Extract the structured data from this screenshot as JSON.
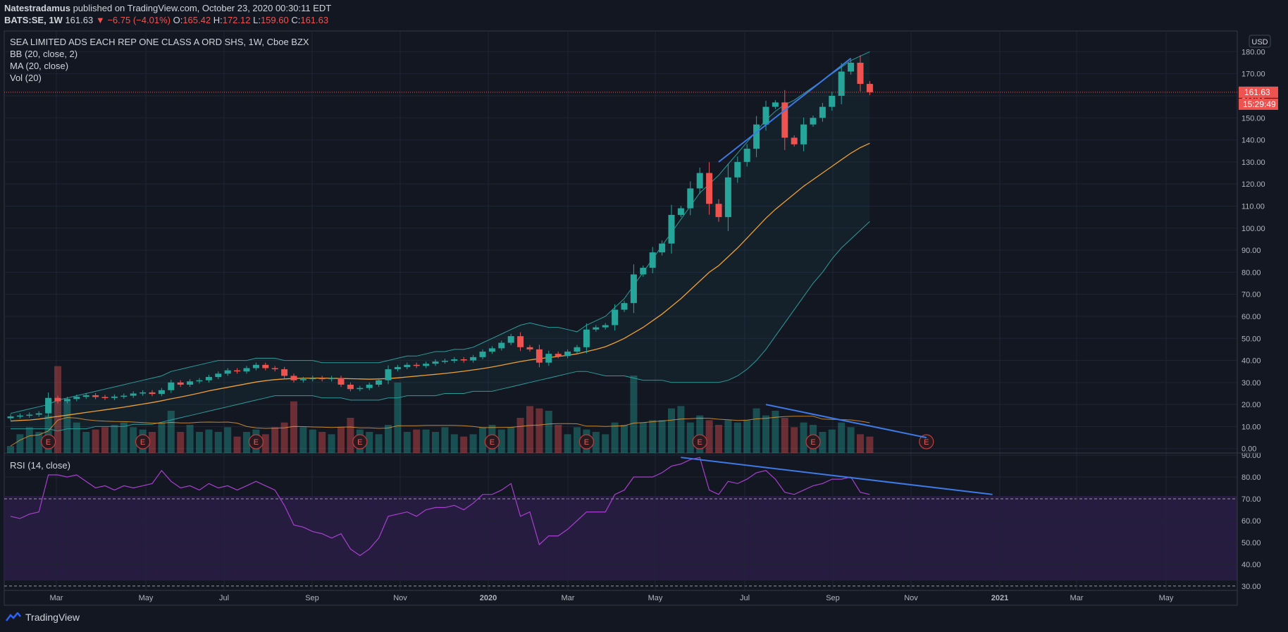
{
  "header": {
    "author": "Natestradamus",
    "published_text": "published on TradingView.com, October 23, 2020 00:30:11 EDT",
    "symbol_interval": "BATS:SE, 1W",
    "price": "161.63",
    "change": "−6.75 (−4.01%)",
    "o_label": "O:",
    "o_value": "165.42",
    "h_label": "H:",
    "h_value": "172.12",
    "l_label": "L:",
    "l_value": "159.60",
    "c_label": "C:",
    "c_value": "161.63"
  },
  "legend": {
    "title": "SEA LIMITED ADS EACH REP ONE CLASS A ORD SHS, 1W, Cboe BZX",
    "bb": "BB (20, close, 2)",
    "ma": "MA (20, close)",
    "vol": "Vol (20)",
    "rsi": "RSI (14, close)"
  },
  "currency": "USD",
  "last_price_label": "161.63",
  "countdown_label": "15:29:49",
  "footer": {
    "brand": "TradingView"
  },
  "colors": {
    "up": "#26a69a",
    "down": "#ef5350",
    "ma": "#f0a030",
    "bb": "#2a9d9a",
    "rsi": "#a93fd0",
    "trend": "#3d7ae6",
    "bg": "#131722"
  },
  "chart_data": {
    "type": "candlestick",
    "title": "SEA LIMITED ADS EACH REP ONE CLASS A ORD SHS, 1W, Cboe BZX",
    "x_ticks": [
      "Mar",
      "May",
      "Jul",
      "Sep",
      "Nov",
      "2020",
      "Mar",
      "May",
      "Jul",
      "Sep",
      "Nov",
      "2021",
      "Mar",
      "May"
    ],
    "y_ticks": [
      "180.00",
      "170.00",
      "160.00",
      "150.00",
      "140.00",
      "130.00",
      "120.00",
      "110.00",
      "100.00",
      "90.00",
      "80.00",
      "70.00",
      "60.00",
      "50.00",
      "40.00",
      "30.00",
      "20.00",
      "10.00",
      "0.00"
    ],
    "ylim": [
      -2,
      183
    ],
    "rsi_ticks": [
      "90.00",
      "80.00",
      "70.00",
      "60.00",
      "50.00",
      "40.00",
      "30.00"
    ],
    "rsi_lim": [
      28,
      91
    ],
    "close": [
      14.6,
      15.0,
      15.4,
      16.0,
      23.0,
      21.5,
      22.5,
      23.5,
      24.2,
      23.4,
      23.0,
      23.6,
      24.0,
      25.0,
      25.5,
      24.8,
      26.5,
      30.0,
      29.0,
      30.5,
      31.0,
      32.5,
      34.0,
      35.5,
      35.0,
      36.5,
      38.0,
      36.5,
      36.0,
      33.0,
      31.0,
      31.5,
      32.0,
      31.5,
      32.0,
      29.0,
      27.0,
      27.5,
      29.0,
      31.0,
      36.0,
      37.0,
      38.0,
      37.5,
      38.5,
      39.5,
      39.8,
      40.5,
      40.0,
      41.5,
      44.0,
      45.5,
      48.0,
      51.0,
      46.0,
      45.0,
      39.0,
      43.0,
      42.0,
      44.0,
      46.0,
      54.0,
      55.0,
      56.0,
      63.0,
      66.0,
      79.0,
      82.0,
      89.0,
      93.0,
      106.0,
      109.0,
      118.0,
      125.0,
      111.0,
      105.0,
      123.0,
      130.0,
      136.0,
      147.0,
      155.0,
      157.0,
      141.0,
      138.0,
      147.0,
      150.0,
      155.0,
      160.0,
      171.0,
      175.0,
      165.4,
      161.63
    ],
    "volume": [
      3,
      8,
      11,
      9,
      16,
      37,
      22,
      13,
      9,
      10,
      11,
      12,
      13,
      11,
      10,
      9,
      13,
      18,
      9,
      12,
      9,
      10,
      9,
      11,
      7,
      9,
      10,
      8,
      11,
      13,
      22,
      11,
      10,
      9,
      8,
      11,
      15,
      10,
      9,
      8,
      12,
      30,
      9,
      10,
      10,
      9,
      11,
      8,
      7,
      8,
      11,
      12,
      10,
      11,
      15,
      20,
      19,
      18,
      12,
      8,
      11,
      10,
      9,
      8,
      13,
      12,
      33,
      13,
      14,
      14,
      19,
      20,
      13,
      16,
      14,
      12,
      14,
      13,
      14,
      19,
      16,
      18,
      15,
      11,
      13,
      12,
      9,
      10,
      13,
      11,
      8,
      7
    ],
    "ma": [
      12.5,
      12.8,
      13.0,
      13.4,
      14.0,
      14.6,
      15.2,
      15.8,
      16.4,
      17.0,
      17.6,
      18.2,
      18.8,
      19.5,
      20.2,
      20.9,
      21.7,
      22.6,
      23.4,
      24.3,
      25.2,
      26.2,
      27.0,
      27.8,
      28.6,
      29.4,
      30.2,
      30.8,
      31.3,
      31.6,
      31.8,
      31.9,
      32.0,
      32.0,
      31.9,
      31.8,
      31.7,
      31.6,
      31.5,
      31.6,
      31.8,
      32.1,
      32.5,
      32.9,
      33.3,
      33.7,
      34.1,
      34.6,
      35.1,
      35.7,
      36.3,
      37.0,
      37.8,
      38.7,
      39.5,
      40.2,
      40.8,
      41.3,
      41.8,
      42.3,
      43.0,
      44.0,
      45.0,
      46.2,
      48.0,
      50.0,
      52.5,
      55.0,
      58.0,
      61.0,
      64.5,
      68.0,
      72.0,
      76.0,
      80.0,
      83.0,
      87.0,
      91.0,
      95.5,
      100.0,
      104.5,
      108.5,
      112.0,
      115.5,
      119.0,
      122.0,
      125.0,
      128.0,
      131.0,
      134.0,
      136.5,
      138.5
    ],
    "bb_upper": [
      16,
      17,
      18,
      19,
      20,
      22,
      23,
      24,
      25,
      26,
      27,
      28,
      29,
      30,
      31,
      32,
      33,
      35,
      36,
      37,
      38,
      39,
      40,
      40,
      40,
      40,
      41,
      41,
      41,
      40,
      40,
      40,
      40,
      39,
      39,
      39,
      39,
      39,
      39,
      39,
      40,
      41,
      42,
      42,
      43,
      44,
      44,
      45,
      45,
      46,
      48,
      50,
      52,
      54,
      56,
      57,
      56,
      55,
      55,
      54,
      53,
      56,
      58,
      60,
      64,
      68,
      74,
      80,
      86,
      92,
      98,
      104,
      110,
      116,
      120,
      124,
      129,
      134,
      139,
      144,
      149,
      153,
      156,
      158,
      161,
      164,
      167,
      170,
      173,
      176,
      178,
      180
    ],
    "bb_lower": [
      9,
      9,
      9,
      9,
      9,
      8,
      9,
      9,
      9,
      10,
      10,
      10,
      10,
      11,
      11,
      11,
      12,
      13,
      14,
      15,
      16,
      17,
      18,
      19,
      20,
      21,
      22,
      23,
      24,
      24,
      24,
      24,
      24,
      23,
      23,
      23,
      22,
      22,
      22,
      22,
      23,
      23,
      24,
      24,
      24,
      24,
      25,
      25,
      25,
      26,
      26,
      26,
      27,
      28,
      29,
      30,
      31,
      32,
      33,
      34,
      35,
      35,
      34,
      33,
      33,
      33,
      32,
      31,
      31,
      31,
      30,
      30,
      30,
      30,
      30,
      30,
      31,
      33,
      36,
      40,
      45,
      51,
      57,
      63,
      69,
      75,
      80,
      86,
      91,
      95,
      99,
      103
    ],
    "rsi": [
      62,
      61,
      63,
      64,
      81,
      81,
      80,
      81,
      78,
      75,
      76,
      74,
      76,
      75,
      76,
      77,
      83,
      78,
      75,
      76,
      74,
      77,
      75,
      76,
      74,
      76,
      78,
      76,
      74,
      67,
      58,
      57,
      55,
      54,
      52,
      54,
      47,
      44,
      47,
      52,
      62,
      63,
      64,
      62,
      65,
      66,
      66,
      67,
      65,
      68,
      72,
      72,
      74,
      77,
      62,
      64,
      49,
      53,
      53,
      56,
      60,
      64,
      64,
      64,
      72,
      74,
      80,
      80,
      80,
      82,
      85,
      86,
      88,
      89,
      74,
      72,
      78,
      77,
      79,
      82,
      83,
      79,
      73,
      72,
      74,
      76,
      77,
      79,
      79,
      80,
      73,
      72
    ]
  }
}
